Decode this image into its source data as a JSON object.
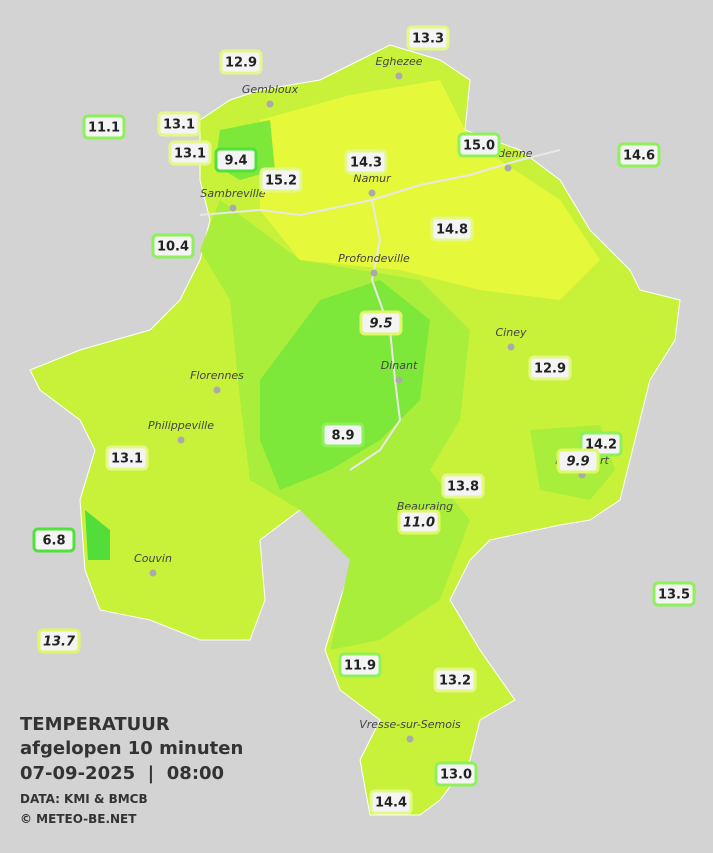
{
  "title": "TEMPERATUUR",
  "subtitle": "afgelopen 10 minuten",
  "datetime": "07-09-2025  |  08:00",
  "source": "DATA: KMI & BMCB",
  "copyright": "© METEO-BE.NET",
  "towns": [
    "Eghezee",
    "Gembloux",
    "Andenne",
    "Namur",
    "Sambreville",
    "Profondeville",
    "Ciney",
    "Dinant",
    "Florennes",
    "Philippeville",
    "Beauraing",
    "Rochefort",
    "Couvin",
    "Vresse-sur-Semois"
  ],
  "stations": [
    "13.3",
    "12.9",
    "11.1",
    "13.1",
    "13.1",
    "9.4",
    "15.2",
    "14.3",
    "15.0",
    "14.6",
    "14.8",
    "10.4",
    "9.5",
    "12.9",
    "14.2",
    "9.9",
    "8.9",
    "13.1",
    "13.8",
    "11.0",
    "6.8",
    "13.5",
    "13.7",
    "11.9",
    "13.2",
    "13.0",
    "14.4"
  ]
}
